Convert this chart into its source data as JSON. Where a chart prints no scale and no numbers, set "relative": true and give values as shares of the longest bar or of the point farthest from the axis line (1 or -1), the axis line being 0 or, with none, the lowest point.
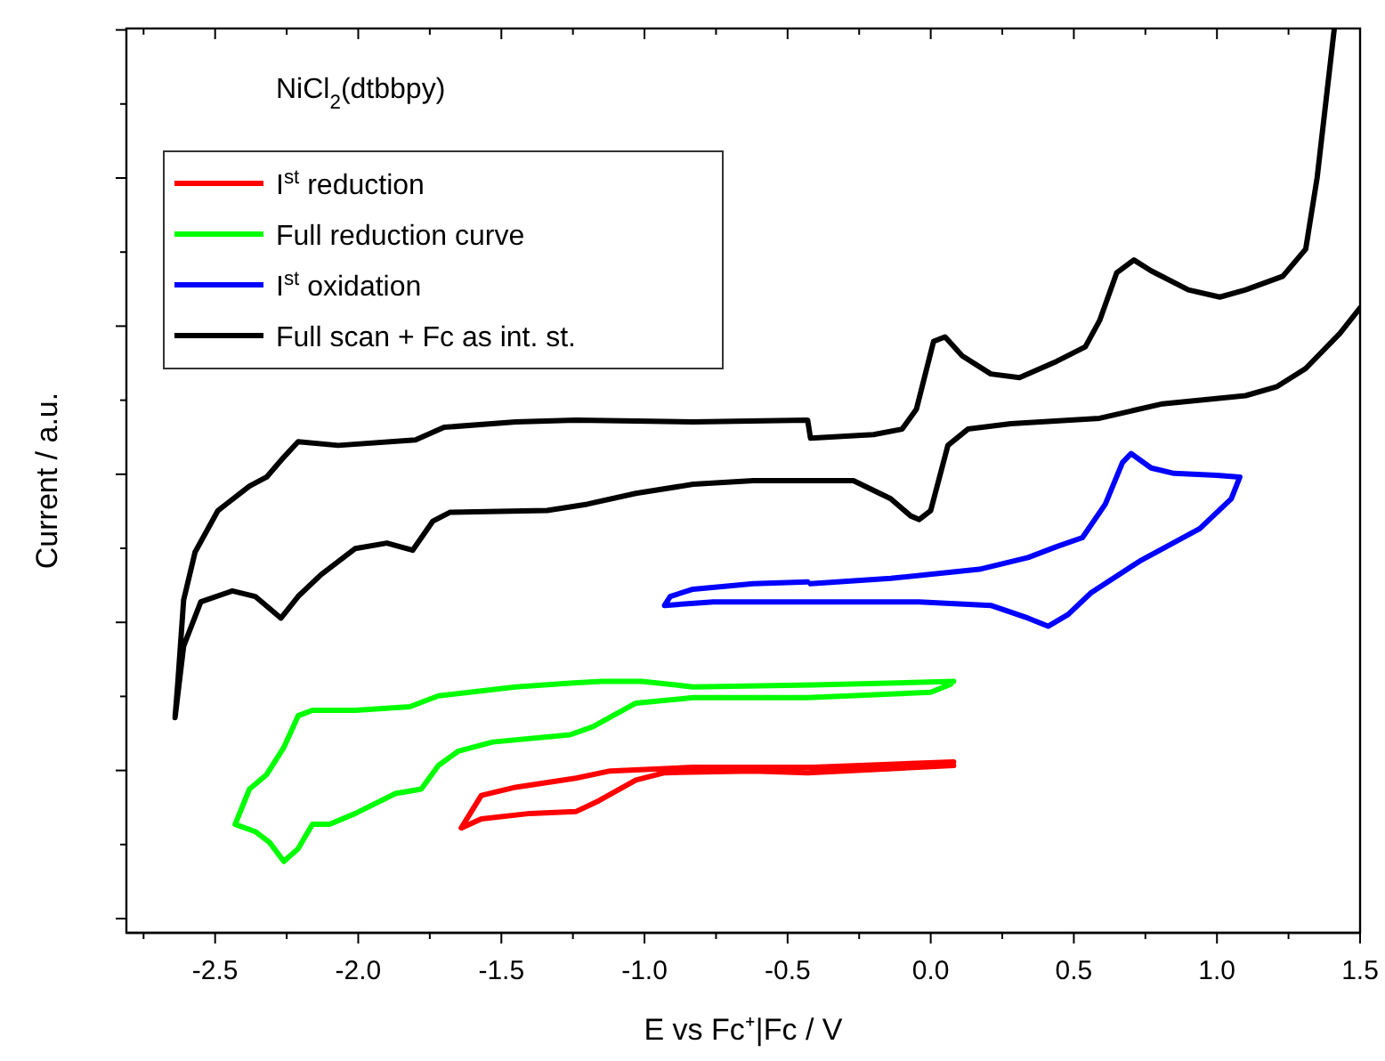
{
  "chart_data": {
    "type": "line",
    "relative": true,
    "xlabel": "E vs Fc⁺|Fc / V",
    "ylabel": "Current / a.u.",
    "annotations": [
      "NiCl$_{2}$(dtbbpy)"
    ],
    "xlim": [
      -2.81,
      1.5
    ],
    "xticks": [
      {
        "value": -2.75,
        "label": null
      },
      {
        "value": -2.5,
        "label": "-2.5"
      },
      {
        "value": -2.25,
        "label": null
      },
      {
        "value": -2.0,
        "label": "-2.0"
      },
      {
        "value": -1.75,
        "label": null
      },
      {
        "value": -1.5,
        "label": "-1.5"
      },
      {
        "value": -1.25,
        "label": null
      },
      {
        "value": -1.0,
        "label": "-1.0"
      },
      {
        "value": -0.75,
        "label": null
      },
      {
        "value": -0.5,
        "label": "-0.5"
      },
      {
        "value": -0.25,
        "label": null
      },
      {
        "value": 0,
        "label": "0.0"
      },
      {
        "value": 0.25,
        "label": null
      },
      {
        "value": 0.5,
        "label": "0.5"
      },
      {
        "value": 0.75,
        "label": null
      },
      {
        "value": 1.0,
        "label": "1.0"
      },
      {
        "value": 1.25,
        "label": null
      },
      {
        "value": 1.5,
        "label": "1.5"
      }
    ],
    "grid": false,
    "legend": "top left",
    "marker": "none",
    "line_style": "solid",
    "series": [
      {
        "name": "I$^{st}$ reduction",
        "color": "#ff0000",
        "x": [
          0.08,
          -0.41,
          -0.83,
          -1.12,
          -1.24,
          -1.45,
          -1.57,
          -1.64,
          -1.57,
          -1.4,
          -1.24,
          -1.16,
          -1.03,
          -0.93,
          -0.62,
          -0.43,
          0.08
        ],
        "values": [
          0.189,
          0.183,
          0.183,
          0.179,
          0.171,
          0.161,
          0.152,
          0.116,
          0.126,
          0.132,
          0.134,
          0.146,
          0.169,
          0.177,
          0.179,
          0.177,
          0.185
        ]
      },
      {
        "name": "Full reduction curve",
        "color": "#00ff00",
        "x": [
          0.08,
          -0.41,
          -0.83,
          -1.01,
          -1.15,
          -1.26,
          -1.45,
          -1.72,
          -1.82,
          -2.01,
          -2.16,
          -2.21,
          -2.26,
          -2.32,
          -2.38,
          -2.43,
          -2.36,
          -2.31,
          -2.26,
          -2.21,
          -2.16,
          -2.1,
          -2.01,
          -1.87,
          -1.78,
          -1.72,
          -1.65,
          -1.53,
          -1.26,
          -1.18,
          -1.03,
          -0.83,
          -0.43,
          0.0,
          0.07
        ],
        "values": [
          0.278,
          0.274,
          0.272,
          0.278,
          0.278,
          0.276,
          0.272,
          0.262,
          0.25,
          0.246,
          0.246,
          0.24,
          0.205,
          0.175,
          0.159,
          0.12,
          0.112,
          0.1,
          0.079,
          0.093,
          0.12,
          0.12,
          0.132,
          0.154,
          0.159,
          0.185,
          0.201,
          0.211,
          0.219,
          0.228,
          0.254,
          0.26,
          0.26,
          0.266,
          0.275
        ]
      },
      {
        "name": "I$^{st}$ oxidation",
        "color": "#0000ff",
        "x": [
          -0.42,
          -0.14,
          0.17,
          0.34,
          0.44,
          0.53,
          0.61,
          0.67,
          0.7,
          0.77,
          0.85,
          1.0,
          1.08,
          1.05,
          0.94,
          0.73,
          0.56,
          0.48,
          0.41,
          0.34,
          0.21,
          -0.04,
          -0.35,
          -0.76,
          -0.93,
          -0.91,
          -0.83,
          -0.62,
          -0.43
        ],
        "values": [
          0.386,
          0.392,
          0.402,
          0.415,
          0.427,
          0.437,
          0.474,
          0.52,
          0.53,
          0.514,
          0.508,
          0.506,
          0.504,
          0.48,
          0.447,
          0.411,
          0.376,
          0.352,
          0.339,
          0.348,
          0.362,
          0.366,
          0.366,
          0.366,
          0.362,
          0.372,
          0.38,
          0.386,
          0.388
        ]
      },
      {
        "name": "Full scan + Fc as int. st.",
        "color": "#000000",
        "x": [
          1.41,
          1.35,
          1.31,
          1.23,
          1.1,
          1.01,
          0.9,
          0.77,
          0.71,
          0.65,
          0.59,
          0.54,
          0.44,
          0.31,
          0.21,
          0.11,
          0.05,
          0.01,
          -0.05,
          -0.1,
          -0.2,
          -0.42,
          -0.43,
          -0.83,
          -1.24,
          -1.45,
          -1.7,
          -1.8,
          -2.07,
          -2.21,
          -2.26,
          -2.32,
          -2.38,
          -2.49,
          -2.57,
          -2.61,
          -2.63,
          -2.64,
          -2.61,
          -2.55,
          -2.44,
          -2.36,
          -2.27,
          -2.21,
          -2.13,
          -2.01,
          -1.9,
          -1.81,
          -1.74,
          -1.68,
          -1.34,
          -1.2,
          -1.03,
          -0.83,
          -0.62,
          -0.41,
          -0.27,
          -0.14,
          -0.07,
          -0.04,
          0.0,
          0.06,
          0.13,
          0.28,
          0.59,
          0.81,
          1.1,
          1.21,
          1.31,
          1.43,
          1.5
        ],
        "values": [
          1.0,
          0.835,
          0.756,
          0.726,
          0.711,
          0.703,
          0.711,
          0.732,
          0.744,
          0.73,
          0.677,
          0.648,
          0.632,
          0.614,
          0.618,
          0.638,
          0.659,
          0.654,
          0.579,
          0.557,
          0.551,
          0.547,
          0.567,
          0.565,
          0.567,
          0.565,
          0.559,
          0.545,
          0.539,
          0.543,
          0.526,
          0.504,
          0.494,
          0.467,
          0.421,
          0.368,
          0.278,
          0.238,
          0.317,
          0.366,
          0.378,
          0.372,
          0.348,
          0.372,
          0.396,
          0.425,
          0.431,
          0.423,
          0.455,
          0.465,
          0.467,
          0.474,
          0.486,
          0.496,
          0.5,
          0.5,
          0.5,
          0.48,
          0.461,
          0.457,
          0.467,
          0.539,
          0.557,
          0.563,
          0.569,
          0.585,
          0.594,
          0.604,
          0.624,
          0.663,
          0.691
        ]
      }
    ]
  }
}
